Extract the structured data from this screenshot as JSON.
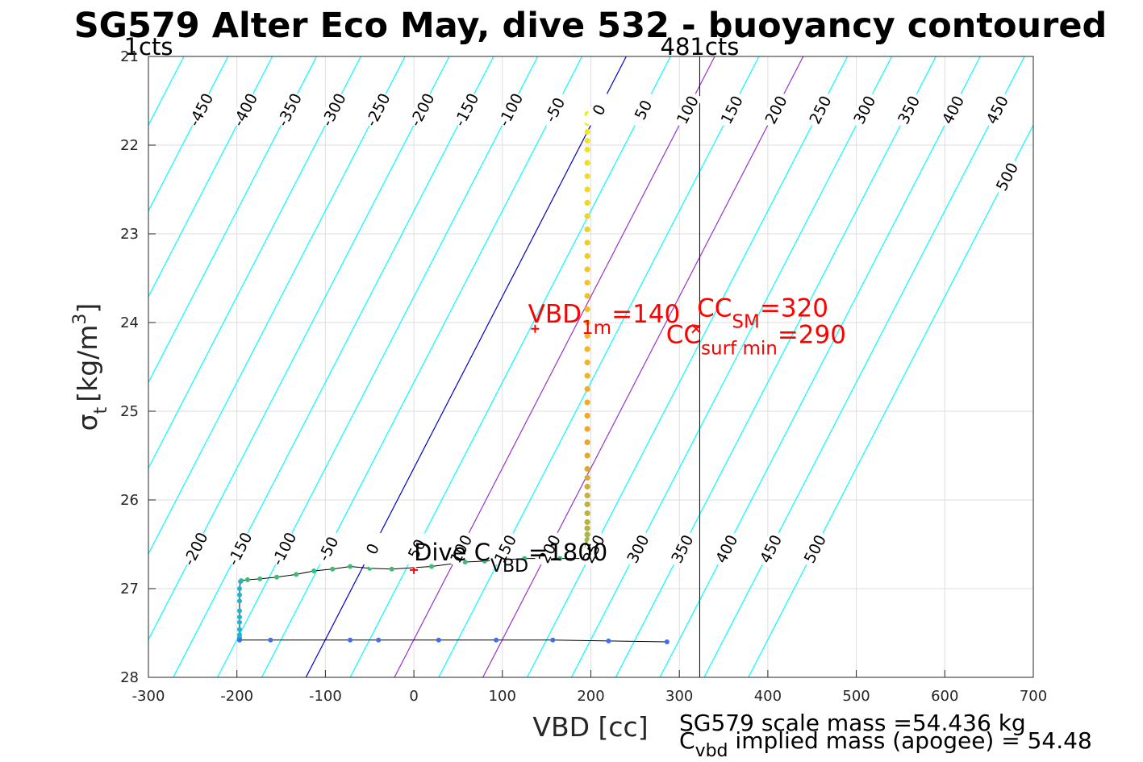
{
  "chart_data": {
    "type": "scatter",
    "title": "SG579 Alter Eco May, dive 532 - buoyancy contoured",
    "xlabel": "VBD [cc]",
    "ylabel": {
      "main": "σ",
      "sub": "t",
      "units_pre": "[kg/m",
      "units_sup": "3",
      "units_post": "]"
    },
    "xlim": [
      -300,
      700
    ],
    "ylim": [
      28,
      21
    ],
    "y_reversed": true,
    "grid": true,
    "xticks": [
      -300,
      -200,
      -100,
      0,
      100,
      200,
      300,
      400,
      500,
      600,
      700
    ],
    "yticks": [
      21,
      22,
      23,
      24,
      25,
      26,
      27,
      28
    ],
    "contours": {
      "color_regular": "#00ffff",
      "color_zero": "#0000cd",
      "color_highlight": "#9932cc",
      "levels": [
        -500,
        -450,
        -400,
        -350,
        -300,
        -250,
        -200,
        -150,
        -100,
        -50,
        0,
        50,
        100,
        150,
        200,
        250,
        300,
        350,
        400,
        450,
        500
      ],
      "highlight_levels": [
        100,
        200
      ],
      "vbd_at_21_for_0": 240,
      "vbd_at_28_for_0": -122,
      "level_spacing_vbd": 50,
      "labels_upper_sigma": 21.6,
      "labels_upper": [
        "-450",
        "-400",
        "-350",
        "-300",
        "-250",
        "-200",
        "-150",
        "-100",
        "-50",
        "0",
        "50",
        "100",
        "150",
        "200",
        "250",
        "300",
        "350",
        "400",
        "450",
        "500"
      ],
      "labels_lower_sigma": 26.55,
      "labels_lower": [
        "-200",
        "-150",
        "-100",
        "-50",
        "0",
        "50",
        "100",
        "150",
        "200",
        "250",
        "300",
        "350",
        "400",
        "450",
        "500"
      ]
    },
    "vertical_lines": [
      {
        "x": -300,
        "label": "1cts"
      },
      {
        "x": 323,
        "label": "481cts"
      }
    ],
    "series": [
      {
        "color_start": "#eeee22",
        "color_mid": "#f5a623",
        "color_end": "#5dc863",
        "x": [
          196,
          196,
          196,
          196,
          196,
          196,
          196,
          196,
          196,
          196,
          196,
          196,
          196,
          196,
          196,
          196,
          196,
          196,
          196,
          196,
          196,
          196,
          196,
          196,
          196,
          196,
          196,
          196,
          196,
          196,
          196,
          196,
          196,
          196,
          196,
          196,
          196,
          196,
          196,
          196,
          196,
          196,
          196,
          196,
          196,
          196,
          196,
          196,
          196
        ],
        "y": [
          21.65,
          21.75,
          21.85,
          21.95,
          22.05,
          22.2,
          22.35,
          22.5,
          22.65,
          22.8,
          22.95,
          23.1,
          23.25,
          23.4,
          23.55,
          23.7,
          23.85,
          24.0,
          24.15,
          24.3,
          24.45,
          24.6,
          24.75,
          24.9,
          25.05,
          25.2,
          25.35,
          25.5,
          25.65,
          25.75,
          25.85,
          25.95,
          26.05,
          26.15,
          26.25,
          26.32,
          26.39,
          26.45,
          26.5,
          26.54,
          26.57,
          26.6,
          26.62,
          26.63,
          26.64,
          26.65,
          26.66,
          26.67,
          26.68
        ]
      },
      {
        "x": [
          196,
          165,
          125,
          80,
          58,
          20,
          -25,
          -50,
          -72,
          -92,
          -113,
          -133,
          -155,
          -174,
          -188,
          -195
        ],
        "y": [
          26.66,
          26.66,
          26.66,
          26.69,
          26.7,
          26.75,
          26.78,
          26.77,
          26.75,
          26.78,
          26.8,
          26.84,
          26.87,
          26.89,
          26.9,
          26.91
        ],
        "color": "#3cbb75"
      },
      {
        "x": [
          -196,
          -197,
          -197,
          -197,
          -197,
          -197,
          -197,
          -197,
          -197,
          -197,
          -197,
          -197
        ],
        "y": [
          26.92,
          27.0,
          27.07,
          27.14,
          27.25,
          27.32,
          27.38,
          27.46,
          27.52,
          27.55,
          27.57,
          27.58
        ],
        "color": "#1fb5d0"
      },
      {
        "x": [
          -197,
          -162,
          -72,
          -40,
          28,
          93,
          157,
          220,
          286
        ],
        "y": [
          27.58,
          27.58,
          27.58,
          27.58,
          27.58,
          27.58,
          27.58,
          27.59,
          27.6
        ],
        "color": "#3e6ef3"
      }
    ],
    "markers": [
      {
        "x": 0,
        "y": 26.79,
        "symbol": "+",
        "color": "#ff0000"
      },
      {
        "x": 137,
        "y": 24.07,
        "symbol": "+",
        "color": "#ff0000"
      },
      {
        "x": 319,
        "y": 24.07,
        "symbol": "x",
        "color": "#ff0000"
      }
    ],
    "annotations": {
      "dive_cvbd": {
        "text_pre": "Dive C",
        "sub": "VBD",
        "text_post": "=1800",
        "x": 0,
        "y": 26.68
      },
      "vbd_1m": {
        "text_pre": "VBD",
        "sub": "1m",
        "text_post": "=140",
        "x": 140,
        "y": 24.0
      },
      "cc_sm": {
        "text_pre": "CC",
        "sub": "SM",
        "text_post": "=320",
        "x": 320,
        "y": 23.93
      },
      "cc_surf_min": {
        "text_pre": "CC",
        "sub": "surf min",
        "text_post": "=290",
        "x": 285,
        "y": 24.23
      }
    },
    "footer": {
      "scale_mass": "SG579 scale mass =54.436 kg",
      "implied_pre": "C",
      "implied_sub": "vbd",
      "implied_post": " implied mass (apogee) = 54.48"
    }
  }
}
